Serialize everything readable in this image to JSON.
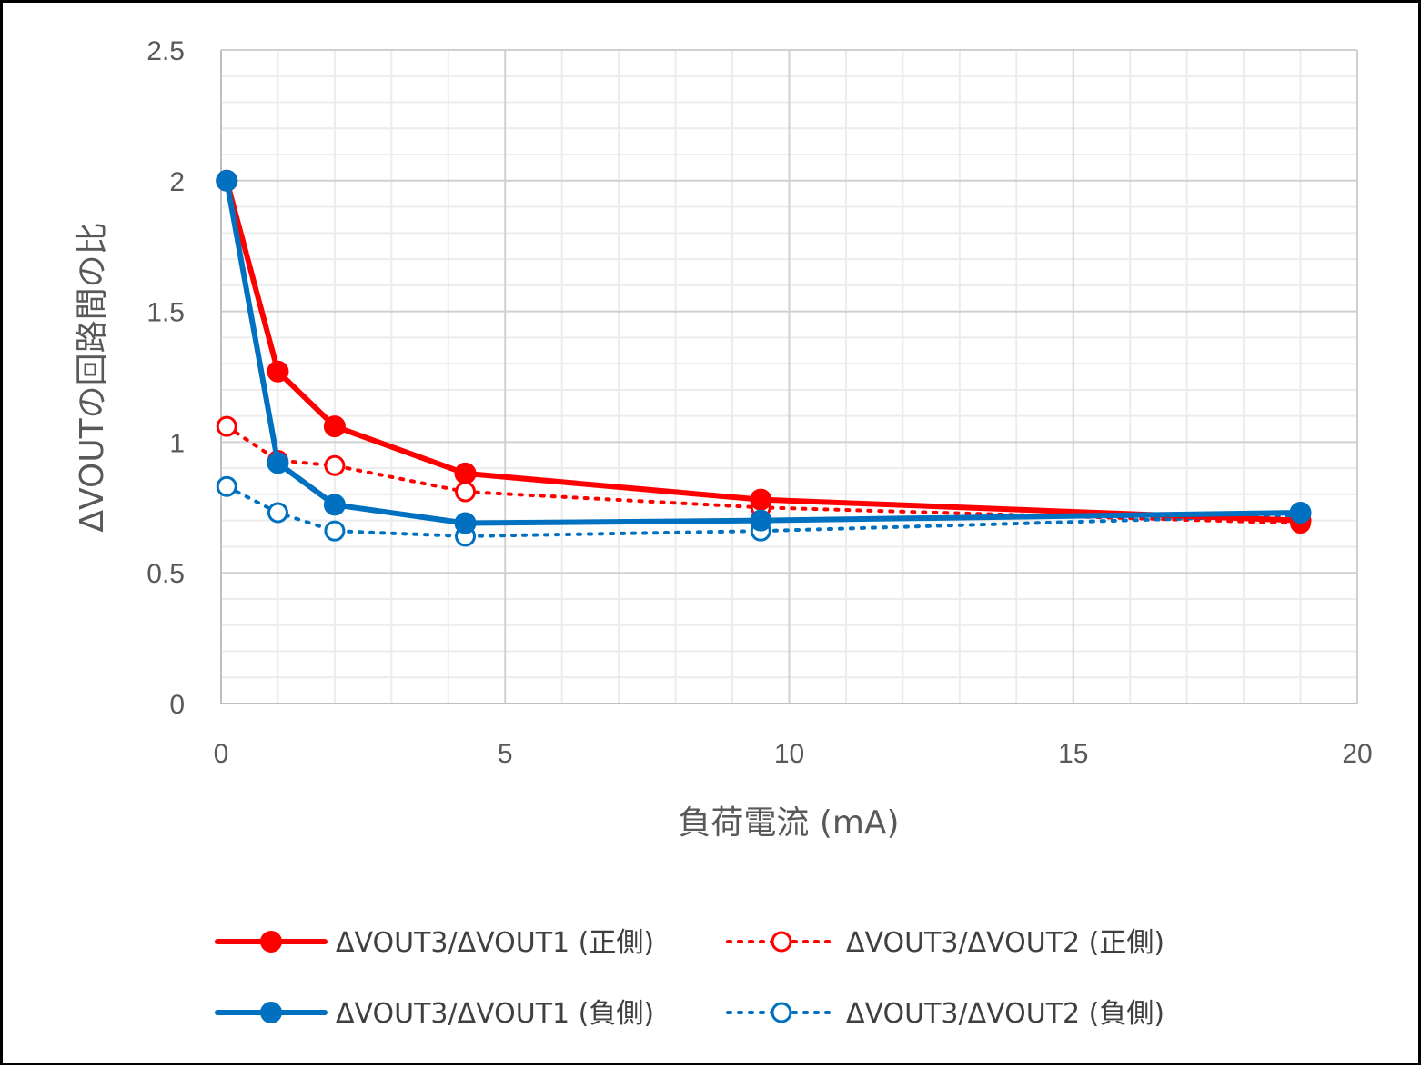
{
  "chart_data": {
    "type": "line",
    "xlabel": "負荷電流 (mA)",
    "ylabel": "ΔVOUTの回路間の比",
    "xlim": [
      0,
      20
    ],
    "ylim": [
      0,
      2.5
    ],
    "xticks": [
      "0",
      "5",
      "10",
      "15",
      "20"
    ],
    "yticks": [
      "0",
      "0.5",
      "1",
      "1.5",
      "2",
      "2.5"
    ],
    "grid": true,
    "minor_grid": true,
    "legend_position": "bottom",
    "x": [
      0.1,
      1.0,
      2.0,
      4.3,
      9.5,
      19.0
    ],
    "series": [
      {
        "name": "ΔVOUT3/ΔVOUT1 (正側)",
        "color": "#ff0000",
        "line_style": "solid",
        "marker": "filled-circle",
        "values": [
          2.0,
          1.27,
          1.06,
          0.88,
          0.78,
          0.7
        ]
      },
      {
        "name": "ΔVOUT3/ΔVOUT2 (正側)",
        "color": "#ff0000",
        "line_style": "dotted",
        "marker": "open-circle",
        "values": [
          1.06,
          0.93,
          0.91,
          0.81,
          0.75,
          0.69
        ]
      },
      {
        "name": "ΔVOUT3/ΔVOUT1 (負側)",
        "color": "#0070c0",
        "line_style": "solid",
        "marker": "filled-circle",
        "values": [
          2.0,
          0.92,
          0.76,
          0.69,
          0.7,
          0.73
        ]
      },
      {
        "name": "ΔVOUT3/ΔVOUT2 (負側)",
        "color": "#0070c0",
        "line_style": "dotted",
        "marker": "open-circle",
        "values": [
          0.83,
          0.73,
          0.66,
          0.64,
          0.66,
          0.72
        ]
      }
    ]
  }
}
